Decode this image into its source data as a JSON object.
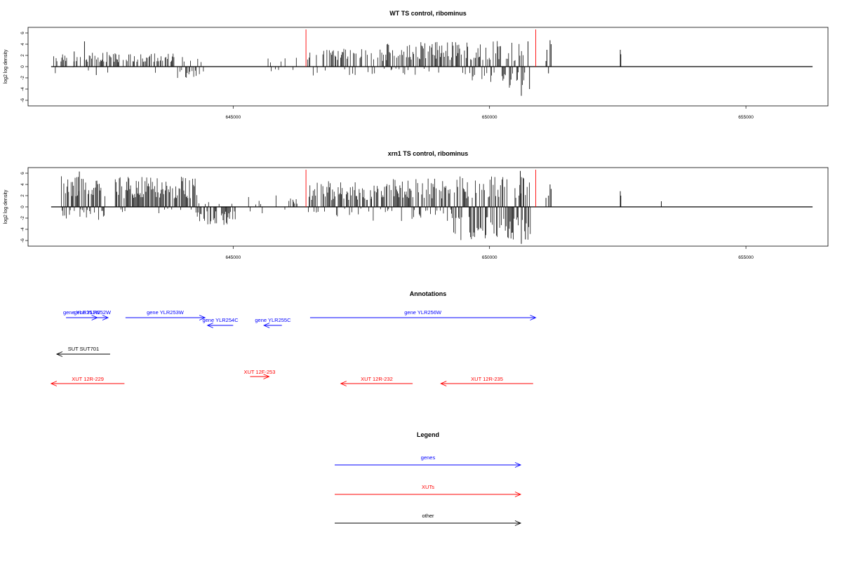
{
  "chart_data": [
    {
      "type": "bar",
      "title": "WT TS control, ribominus",
      "ylabel": "log2 log density",
      "ylim": [
        -7,
        7
      ],
      "yticks": [
        -6,
        -4,
        -2,
        0,
        2,
        4,
        6
      ],
      "xlim": [
        641000,
        656600
      ],
      "xticks": [
        645000,
        650000,
        655000
      ],
      "data_xrange": [
        641450,
        656300
      ],
      "markers": [
        646420,
        650900
      ],
      "series": [
        {
          "segments": [
            {
              "x0": 641500,
              "x1": 643900,
              "density": 0.5,
              "pos": [
                0.8,
                2.6
              ],
              "neg": [
                0,
                1.2
              ],
              "negProb": 0.08,
              "seed": 11
            },
            {
              "x0": 643900,
              "x1": 644500,
              "density": 0.5,
              "pos": [
                0.6,
                1.8
              ],
              "neg": [
                0.6,
                2.2
              ],
              "negProb": 0.55,
              "seed": 12
            },
            {
              "x0": 645350,
              "x1": 646300,
              "density": 0.12,
              "pos": [
                0.5,
                2.0
              ],
              "neg": [
                0.3,
                1.2
              ],
              "negProb": 0.3,
              "seed": 13
            },
            {
              "x0": 646450,
              "x1": 648000,
              "density": 0.6,
              "pos": [
                1.0,
                3.2
              ],
              "neg": [
                0.3,
                1.6
              ],
              "negProb": 0.18,
              "seed": 14
            },
            {
              "x0": 648000,
              "x1": 649600,
              "density": 0.75,
              "pos": [
                1.2,
                4.4
              ],
              "neg": [
                0.3,
                1.5
              ],
              "negProb": 0.15,
              "seed": 15
            },
            {
              "x0": 649600,
              "x1": 650700,
              "density": 0.9,
              "pos": [
                1.0,
                4.6
              ],
              "neg": [
                1.0,
                4.0
              ],
              "negProb": 0.5,
              "seed": 16
            }
          ],
          "spikes": [
            [
              641900,
              2.7
            ],
            [
              642100,
              4.5
            ],
            [
              642330,
              -1.5
            ],
            [
              650620,
              -5.2
            ],
            [
              650750,
              4.5
            ],
            [
              650780,
              -4.0
            ],
            [
              651100,
              1.0
            ],
            [
              651120,
              3.0
            ],
            [
              651150,
              -1.2
            ],
            [
              651180,
              4.7
            ],
            [
              651200,
              4.0
            ],
            [
              652550,
              3.0
            ],
            [
              652560,
              2.2
            ]
          ]
        }
      ]
    },
    {
      "type": "bar",
      "title": "xrn1 TS control, ribominus",
      "ylabel": "log2 log density",
      "ylim": [
        -7,
        7
      ],
      "yticks": [
        -6,
        -4,
        -2,
        0,
        2,
        4,
        6
      ],
      "xlim": [
        641000,
        656600
      ],
      "xticks": [
        645000,
        650000,
        655000
      ],
      "data_xrange": [
        641450,
        656300
      ],
      "markers": [
        646420,
        650900
      ],
      "series": [
        {
          "segments": [
            {
              "x0": 641650,
              "x1": 642500,
              "density": 1.0,
              "pos": [
                1.8,
                6.2
              ],
              "neg": [
                0.4,
                2.6
              ],
              "negProb": 0.4,
              "seed": 21
            },
            {
              "x0": 642700,
              "x1": 644300,
              "density": 0.9,
              "pos": [
                1.5,
                5.4
              ],
              "neg": [
                0.3,
                1.2
              ],
              "negProb": 0.12,
              "seed": 22
            },
            {
              "x0": 644300,
              "x1": 645050,
              "density": 0.7,
              "pos": [
                0.4,
                1.2
              ],
              "neg": [
                0.8,
                3.2
              ],
              "negProb": 0.8,
              "seed": 23
            },
            {
              "x0": 645300,
              "x1": 646300,
              "density": 0.35,
              "pos": [
                0.4,
                2.4
              ],
              "neg": [
                0.4,
                2.3
              ],
              "negProb": 0.35,
              "seed": 24
            },
            {
              "x0": 646450,
              "x1": 647700,
              "density": 0.85,
              "pos": [
                1.2,
                4.6
              ],
              "neg": [
                0.3,
                1.8
              ],
              "negProb": 0.2,
              "seed": 25
            },
            {
              "x0": 647700,
              "x1": 649300,
              "density": 0.85,
              "pos": [
                1.5,
                5.2
              ],
              "neg": [
                0.4,
                2.6
              ],
              "negProb": 0.3,
              "seed": 26
            },
            {
              "x0": 649300,
              "x1": 650800,
              "density": 1.0,
              "pos": [
                1.5,
                5.5
              ],
              "neg": [
                1.8,
                6.0
              ],
              "negProb": 0.55,
              "seed": 27
            }
          ],
          "spikes": [
            [
              642000,
              6.3
            ],
            [
              650600,
              6.4
            ],
            [
              650620,
              -6.6
            ],
            [
              650700,
              -5.8
            ],
            [
              651100,
              1.6
            ],
            [
              651150,
              2.0
            ],
            [
              651180,
              4.0
            ],
            [
              651200,
              3.2
            ],
            [
              652550,
              2.8
            ],
            [
              652560,
              2.0
            ],
            [
              653350,
              1.0
            ]
          ]
        }
      ]
    }
  ],
  "annotations": {
    "title": "Annotations",
    "items": [
      {
        "label": "gene YLR251W",
        "x0": 641740,
        "x1": 642350,
        "dir": "right",
        "color": "#0000ff",
        "row": 0
      },
      {
        "label": "gene YLR252W",
        "x0": 641950,
        "x1": 642560,
        "dir": "right",
        "color": "#0000ff",
        "row": 0
      },
      {
        "label": "gene YLR253W",
        "x0": 642900,
        "x1": 644450,
        "dir": "right",
        "color": "#0000ff",
        "row": 0
      },
      {
        "label": "gene YLR254C",
        "x0": 644500,
        "x1": 645000,
        "dir": "left",
        "color": "#0000ff",
        "row": 1
      },
      {
        "label": "gene YLR255C",
        "x0": 645600,
        "x1": 645950,
        "dir": "left",
        "color": "#0000ff",
        "row": 1
      },
      {
        "label": "gene YLR256W",
        "x0": 646500,
        "x1": 650900,
        "dir": "right",
        "color": "#0000ff",
        "row": 0
      },
      {
        "label": "SUT SUT701",
        "x0": 641560,
        "x1": 642600,
        "dir": "left",
        "color": "#000000",
        "row": 2
      },
      {
        "label": "XUT 12R-229",
        "x0": 641450,
        "x1": 642880,
        "dir": "left",
        "color": "#ff0000",
        "row": 3
      },
      {
        "label": "XUT 12F-253",
        "x0": 645330,
        "x1": 645700,
        "dir": "right",
        "color": "#ff0000",
        "row": 4
      },
      {
        "label": "XUT 12R-232",
        "x0": 647100,
        "x1": 648500,
        "dir": "left",
        "color": "#ff0000",
        "row": 3
      },
      {
        "label": "XUT 12R-235",
        "x0": 649050,
        "x1": 650850,
        "dir": "left",
        "color": "#ff0000",
        "row": 3
      }
    ]
  },
  "legend": {
    "title": "Legend",
    "items": [
      {
        "label": "genes",
        "color": "#0000ff"
      },
      {
        "label": "XUTs",
        "color": "#ff0000"
      },
      {
        "label": "other",
        "color": "#000000"
      }
    ]
  }
}
